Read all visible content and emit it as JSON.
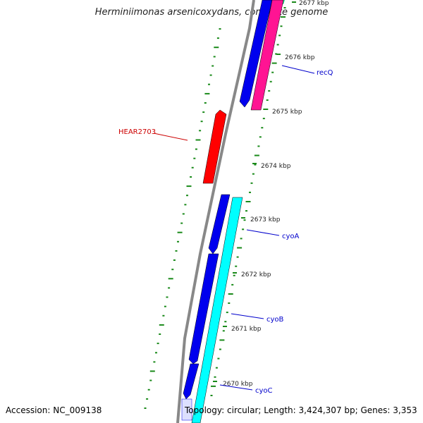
{
  "title": "Herminiimonas arsenicoxydans, complete genome",
  "footer": {
    "accession": "Accession: NC_009138",
    "topology": "Topology: circular; Length: 3,424,307 bp; Genes: 3,353"
  },
  "colors": {
    "backbone": "#777777",
    "forward_cds": "#0000ee",
    "reverse_cds": "#00ffff",
    "rRNA_like": "#ff1493",
    "green_feature": "#22dd88",
    "highlight": "#ff0000",
    "gc_tick": "#1a8a1a",
    "label_blue": "#0000cc",
    "label_red": "#cc0000"
  },
  "scale_ticks": [
    {
      "label": "2677 kbp"
    },
    {
      "label": "2676 kbp"
    },
    {
      "label": "2675 kbp"
    },
    {
      "label": "2674 kbp"
    },
    {
      "label": "2673 kbp"
    },
    {
      "label": "2672 kbp"
    },
    {
      "label": "2671 kbp"
    },
    {
      "label": "2670 kbp"
    }
  ],
  "gene_labels": [
    {
      "name": "recQ",
      "color": "blue"
    },
    {
      "name": "HEAR2703",
      "color": "red"
    },
    {
      "name": "cyoA",
      "color": "blue"
    },
    {
      "name": "cyoB",
      "color": "blue"
    },
    {
      "name": "cyoC",
      "color": "blue"
    }
  ]
}
